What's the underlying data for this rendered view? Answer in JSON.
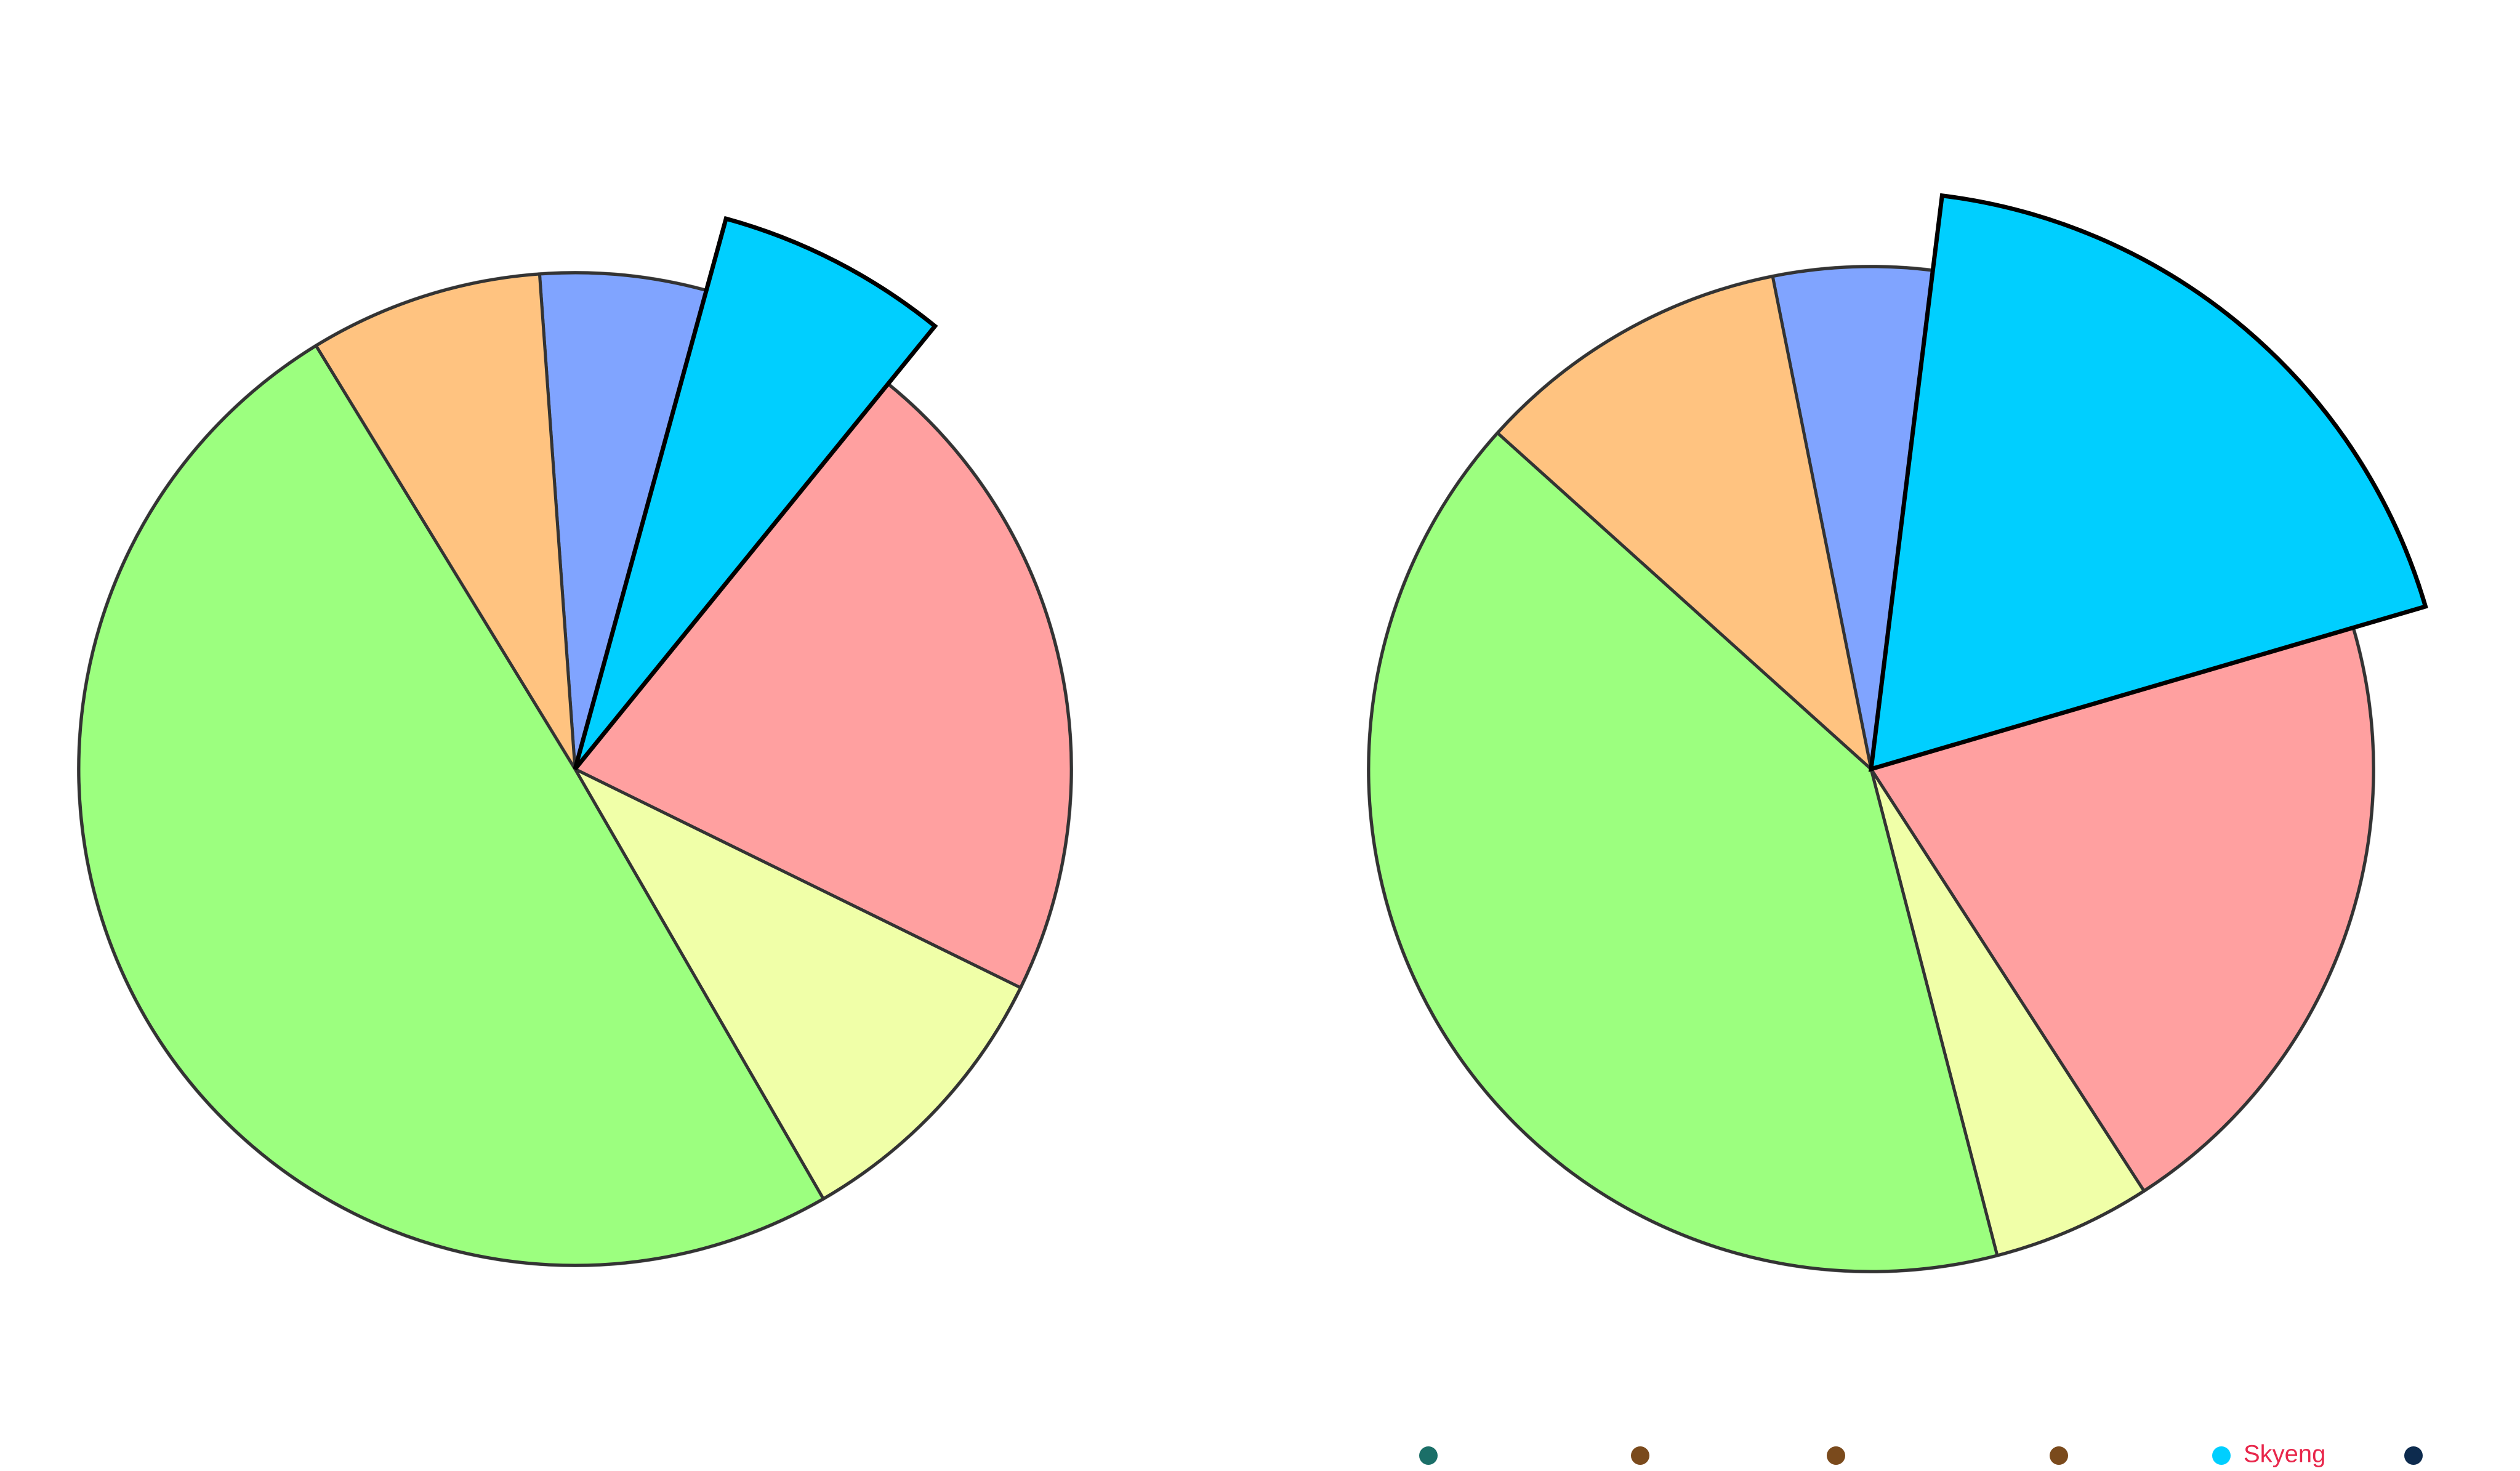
{
  "chart_data": [
    {
      "type": "pie",
      "values": [
        5.4,
        6.6,
        21.4,
        9.4,
        49.6,
        7.6
      ],
      "colors": [
        "#80a4ff",
        "#00cfff",
        "#ffa0a0",
        "#f0ffa8",
        "#9cff7f",
        "#ffc380"
      ],
      "exploded": 1
    },
    {
      "type": "pie",
      "values": [
        5.1,
        18.5,
        20.4,
        5.1,
        40.7,
        10.2
      ],
      "colors": [
        "#80a4ff",
        "#00cfff",
        "#ffa0a0",
        "#f0ffa8",
        "#9cff7f",
        "#ffc380"
      ],
      "exploded": 1
    }
  ],
  "legend": [
    {
      "name": null,
      "color": "#1b6f68"
    },
    {
      "name": null,
      "color": "#7a4a1c"
    },
    {
      "name": null,
      "color": "#7a4a1c"
    },
    {
      "name": null,
      "color": "#7a4a1c"
    },
    {
      "name": "Skyeng",
      "color": "#00cfff"
    },
    {
      "name": null,
      "color": "#0d2b4e"
    }
  ]
}
